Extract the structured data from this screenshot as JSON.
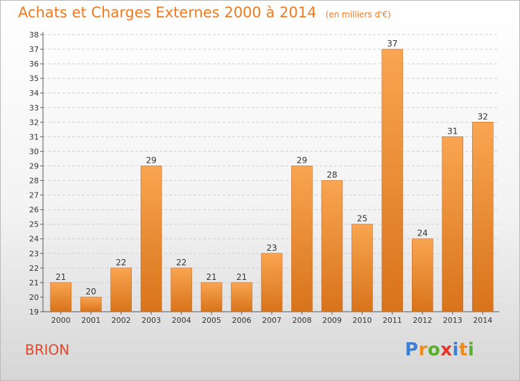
{
  "header": {
    "title": "Achats et Charges Externes 2000 à 2014",
    "unit": "(en milliers d'€)"
  },
  "commune": "BRION",
  "logo": {
    "letters": [
      "P",
      "r",
      "o",
      "x",
      "i",
      "t",
      "i"
    ],
    "colors": [
      "#3a7fd5",
      "#f08a1c",
      "#5aae2e",
      "#e8352b",
      "#3a7fd5",
      "#f08a1c",
      "#5aae2e"
    ]
  },
  "chart_data": {
    "type": "bar",
    "categories": [
      "2000",
      "2001",
      "2002",
      "2003",
      "2004",
      "2005",
      "2006",
      "2007",
      "2008",
      "2009",
      "2010",
      "2011",
      "2012",
      "2013",
      "2014"
    ],
    "values": [
      21,
      20,
      22,
      29,
      22,
      21,
      21,
      23,
      29,
      28,
      25,
      37,
      24,
      31,
      32
    ],
    "ylim": [
      19,
      38
    ],
    "ytick_step": 1,
    "grid": true,
    "bar_color_top": "#f9a552",
    "bar_color_bottom": "#d8731a",
    "label_color": "#333333"
  }
}
